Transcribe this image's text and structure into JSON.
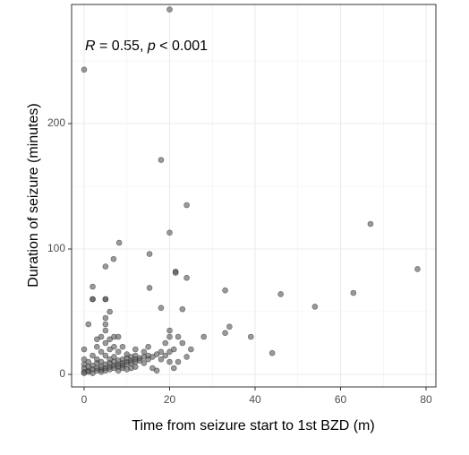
{
  "chart_data": {
    "type": "scatter",
    "annotation": [
      "R",
      " = 0.55, ",
      "p",
      " < 0.001"
    ],
    "xlabel": "Time from seizure start to 1st BZD (m)",
    "ylabel": "Duration of seizure (minutes)",
    "color": "#555555",
    "xlim": [
      -2.93,
      82.3
    ],
    "ylim": [
      -10,
      295
    ],
    "xticks": [
      0,
      20,
      40,
      60,
      80
    ],
    "yticks": [
      0,
      100,
      200
    ],
    "xminor": [
      10,
      30,
      50,
      70
    ],
    "yminor": [
      50,
      150,
      250
    ],
    "grid": true,
    "x": [
      0,
      20,
      18,
      24,
      20,
      67,
      78,
      15.3,
      8.2,
      6.9,
      5,
      21.4,
      21.4,
      24,
      2,
      15.3,
      33,
      46,
      63,
      54,
      2,
      5,
      18,
      23,
      34,
      33,
      39,
      28,
      44,
      0,
      0,
      0,
      0,
      0,
      0,
      1,
      1,
      1,
      1,
      2,
      2,
      2,
      2,
      3,
      3,
      3,
      3,
      3,
      4,
      4,
      4,
      4,
      4,
      4,
      5,
      5,
      5,
      5,
      5,
      5,
      5,
      5,
      6,
      6,
      6,
      6,
      6,
      6,
      7,
      7,
      7,
      7,
      7,
      8,
      8,
      8,
      8,
      8,
      9,
      9,
      9,
      9,
      10,
      10,
      10,
      10,
      11,
      11,
      11,
      12,
      12,
      12,
      12,
      13,
      13,
      14,
      14,
      14,
      15,
      15,
      15,
      16,
      16,
      17,
      17,
      18,
      18,
      19,
      19,
      20,
      20,
      20,
      20,
      21,
      21,
      22,
      22,
      23,
      24,
      25,
      6,
      5,
      2,
      1,
      7,
      3,
      8,
      9,
      10,
      11,
      12
    ],
    "y": [
      243,
      291,
      171,
      135,
      113,
      120,
      84,
      96,
      105,
      92,
      86,
      82,
      81,
      77,
      70,
      69,
      67,
      64,
      65,
      54,
      60,
      60,
      53,
      52,
      38,
      33,
      30,
      30,
      17,
      2,
      5,
      8,
      12,
      20,
      1,
      3,
      6,
      10,
      2,
      4,
      7,
      15,
      1,
      3,
      5,
      9,
      22,
      12,
      4,
      6,
      10,
      2,
      30,
      18,
      5,
      8,
      3,
      45,
      40,
      35,
      25,
      15,
      6,
      9,
      4,
      12,
      28,
      20,
      7,
      10,
      5,
      30,
      14,
      8,
      11,
      6,
      18,
      30,
      9,
      12,
      7,
      22,
      10,
      13,
      8,
      16,
      11,
      14,
      9,
      12,
      15,
      10,
      20,
      13,
      11,
      14,
      18,
      9,
      15,
      12,
      22,
      14,
      5,
      16,
      3,
      18,
      12,
      15,
      25,
      35,
      30,
      18,
      10,
      20,
      5,
      30,
      10,
      25,
      14,
      20,
      50,
      60,
      60,
      40,
      22,
      28,
      3,
      5,
      4,
      5,
      6
    ]
  }
}
